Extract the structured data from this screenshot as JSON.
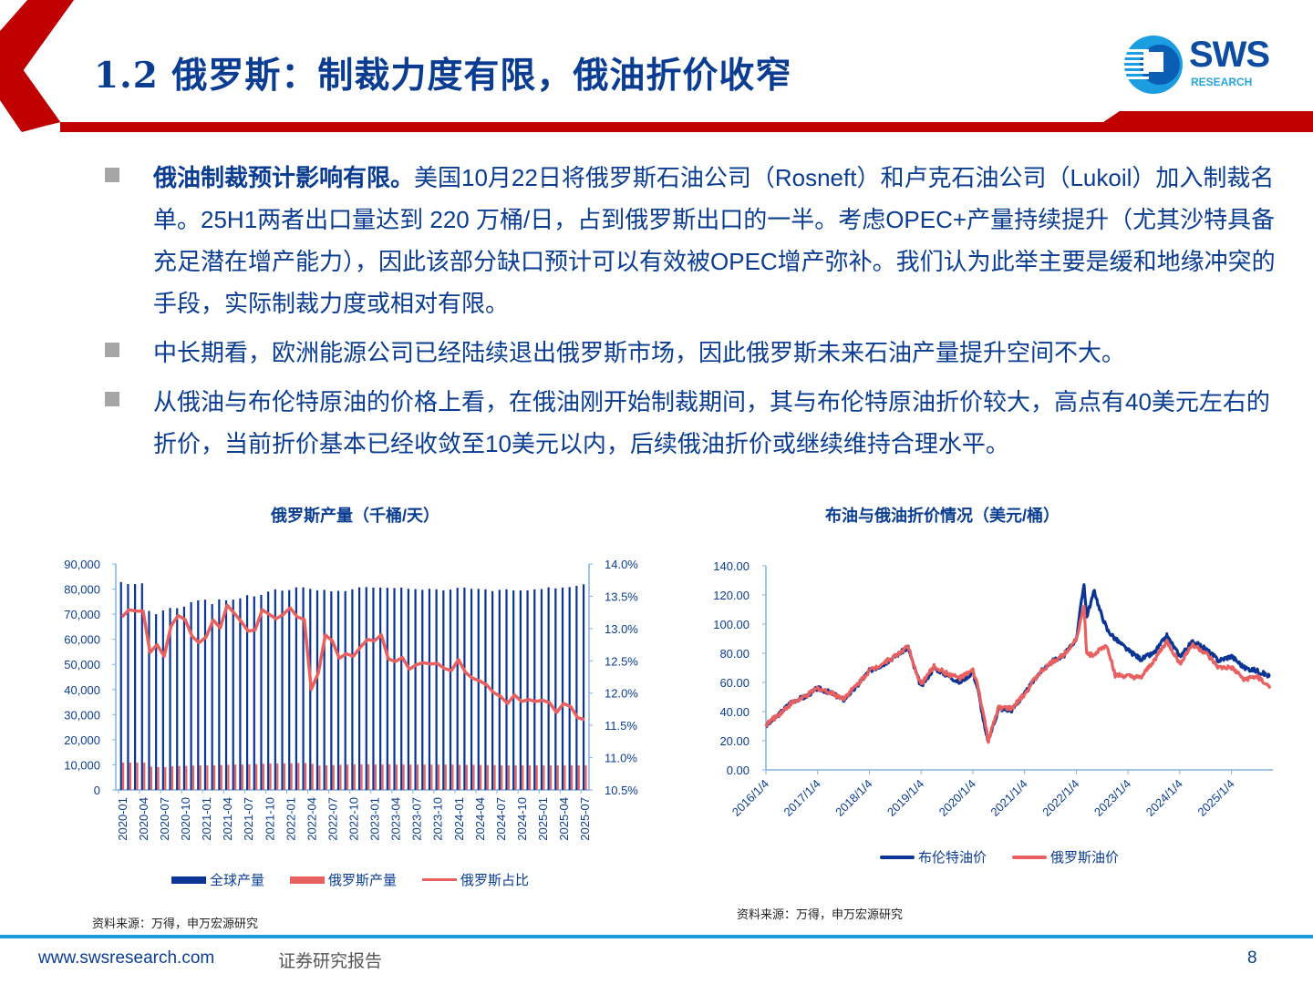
{
  "header": {
    "title": "1.2 俄罗斯：制裁力度有限，俄油折价收窄",
    "logo_text": "SWS",
    "logo_subtext": "RESEARCH",
    "accent_color": "#c00000",
    "title_color": "#0a3d91"
  },
  "bullets": [
    {
      "bold": "俄油制裁预计影响有限。",
      "text": "美国10月22日将俄罗斯石油公司（Rosneft）和卢克石油公司（Lukoil）加入制裁名单。25H1两者出口量达到 220 万桶/日，占到俄罗斯出口的一半。考虑OPEC+产量持续提升（尤其沙特具备充足潜在增产能力），因此该部分缺口预计可以有效被OPEC增产弥补。我们认为此举主要是缓和地缘冲突的手段，实际制裁力度或相对有限。"
    },
    {
      "bold": "",
      "text": "中长期看，欧洲能源公司已经陆续退出俄罗斯市场，因此俄罗斯未来石油产量提升空间不大。"
    },
    {
      "bold": "",
      "text": "从俄油与布伦特原油的价格上看，在俄油刚开始制裁期间，其与布伦特原油折价较大，高点有40美元左右的折价，当前折价基本已经收敛至10美元以内，后续俄油折价或继续维持合理水平。"
    }
  ],
  "left_chart": {
    "source": "资料来源：万得，申万宏源研究"
  },
  "right_chart": {
    "source": "资料来源：万得，申万宏源研究"
  },
  "footer": {
    "url": "www.swsresearch.com",
    "label": "证券研究报告",
    "page": "8"
  },
  "chart_data": [
    {
      "type": "bar",
      "title": "俄罗斯产量（千桶/天）",
      "xlabel": "",
      "ylabel": "",
      "ylim": [
        0,
        90000
      ],
      "y2lim": [
        10.5,
        14.0
      ],
      "yticks": [
        "0",
        "10,000",
        "20,000",
        "30,000",
        "40,000",
        "50,000",
        "60,000",
        "70,000",
        "80,000",
        "90,000"
      ],
      "y2ticks": [
        "10.5%",
        "11.0%",
        "11.5%",
        "12.0%",
        "12.5%",
        "13.0%",
        "13.5%",
        "14.0%"
      ],
      "xticks": [
        "2020-01",
        "2020-04",
        "2020-07",
        "2020-10",
        "2021-01",
        "2021-04",
        "2021-07",
        "2021-10",
        "2022-01",
        "2022-04",
        "2022-07",
        "2022-10",
        "2023-01",
        "2023-04",
        "2023-07",
        "2023-10",
        "2024-01",
        "2024-04",
        "2024-07",
        "2024-10",
        "2025-01",
        "2025-04",
        "2025-07"
      ],
      "legend": [
        "全球产量",
        "俄罗斯产量",
        "俄罗斯占比"
      ],
      "legend_position": "bottom",
      "grid": false,
      "series": [
        {
          "name": "全球产量",
          "type": "bar",
          "color": "#0a3594",
          "values": [
            82800,
            82000,
            82000,
            82300,
            71300,
            70000,
            71500,
            72500,
            72400,
            73000,
            74800,
            75500,
            75800,
            74000,
            75900,
            75500,
            75800,
            76300,
            77600,
            77100,
            77700,
            79000,
            79900,
            79400,
            79600,
            80700,
            80700,
            80100,
            79500,
            79700,
            79100,
            79300,
            79200,
            79900,
            80700,
            80800,
            80600,
            80600,
            80500,
            80400,
            80600,
            80100,
            80000,
            79700,
            80100,
            79900,
            79500,
            79800,
            80500,
            80600,
            80100,
            80100,
            79900,
            79200,
            79700,
            79900,
            79500,
            79500,
            79500,
            79900,
            80000,
            80700,
            80300,
            80600,
            80800,
            81300,
            81900
          ]
        },
        {
          "name": "俄罗斯产量",
          "type": "bar",
          "color": "#e8605f",
          "values": [
            10900,
            10900,
            10900,
            10900,
            9300,
            9100,
            9100,
            9400,
            9500,
            9600,
            9700,
            9800,
            9800,
            9800,
            9900,
            10000,
            10100,
            10100,
            10200,
            10300,
            10400,
            10500,
            10500,
            10600,
            10600,
            10700,
            10700,
            10400,
            9700,
            9800,
            9900,
            10000,
            10100,
            10200,
            10200,
            10200,
            10100,
            10100,
            10200,
            10100,
            10100,
            10100,
            10100,
            10100,
            10100,
            10100,
            10100,
            10100,
            10000,
            10000,
            10000,
            9900,
            9900,
            9900,
            9800,
            9800,
            9800,
            9800,
            9800,
            9800,
            9800,
            9800,
            9800,
            9800,
            9800,
            9800,
            9800
          ]
        },
        {
          "name": "俄罗斯占比",
          "type": "line",
          "color": "#e8605f",
          "axis": "right",
          "values": [
            13.18,
            13.29,
            13.27,
            13.27,
            12.63,
            12.75,
            12.57,
            13.04,
            13.2,
            13.14,
            12.88,
            12.78,
            12.87,
            13.13,
            13.01,
            13.36,
            13.24,
            13.11,
            12.96,
            12.98,
            13.29,
            13.22,
            13.15,
            13.22,
            13.32,
            13.18,
            13.14,
            12.06,
            12.31,
            12.9,
            12.81,
            12.54,
            12.61,
            12.57,
            12.71,
            12.83,
            12.81,
            12.9,
            12.53,
            12.49,
            12.55,
            12.37,
            12.44,
            12.47,
            12.45,
            12.46,
            12.38,
            12.35,
            12.52,
            12.32,
            12.23,
            12.19,
            12.13,
            12.01,
            11.95,
            11.84,
            11.97,
            11.87,
            11.9,
            11.87,
            11.89,
            11.85,
            11.7,
            11.84,
            11.79,
            11.62,
            11.59
          ]
        }
      ]
    },
    {
      "type": "line",
      "title": "布油与俄油折价情况（美元/桶）",
      "xlabel": "",
      "ylabel": "",
      "ylim": [
        0,
        140
      ],
      "yticks": [
        "0.00",
        "20.00",
        "40.00",
        "60.00",
        "80.00",
        "100.00",
        "120.00",
        "140.00"
      ],
      "xticks": [
        "2016/1/4",
        "2017/1/4",
        "2018/1/4",
        "2019/1/4",
        "2020/1/4",
        "2021/1/4",
        "2022/1/4",
        "2023/1/4",
        "2024/1/4",
        "2025/1/4"
      ],
      "legend": [
        "布伦特油价",
        "俄罗斯油价"
      ],
      "legend_position": "bottom",
      "grid": false,
      "x_years": [
        2016.0,
        2016.25,
        2016.5,
        2016.75,
        2017.0,
        2017.25,
        2017.5,
        2017.75,
        2018.0,
        2018.25,
        2018.5,
        2018.75,
        2018.85,
        2019.0,
        2019.25,
        2019.5,
        2019.75,
        2020.0,
        2020.1,
        2020.25,
        2020.3,
        2020.5,
        2020.75,
        2021.0,
        2021.25,
        2021.5,
        2021.75,
        2022.0,
        2022.15,
        2022.2,
        2022.35,
        2022.45,
        2022.6,
        2022.75,
        2023.0,
        2023.25,
        2023.5,
        2023.75,
        2024.0,
        2024.25,
        2024.5,
        2024.75,
        2025.0,
        2025.25,
        2025.5,
        2025.75
      ],
      "series": [
        {
          "name": "布伦特油价",
          "color": "#0a3594",
          "values": [
            30,
            38,
            47,
            50,
            56,
            53,
            48,
            57,
            68,
            72,
            78,
            84,
            72,
            57,
            70,
            65,
            60,
            67,
            55,
            25,
            20,
            42,
            41,
            52,
            65,
            74,
            78,
            90,
            128,
            105,
            123,
            110,
            96,
            90,
            82,
            76,
            80,
            92,
            78,
            88,
            83,
            75,
            78,
            70,
            68,
            64
          ]
        },
        {
          "name": "俄罗斯油价",
          "color": "#e8605f",
          "values": [
            31,
            38,
            46,
            50,
            56,
            53,
            49,
            58,
            68,
            73,
            78,
            85,
            72,
            59,
            71,
            66,
            63,
            68,
            57,
            30,
            20,
            43,
            42,
            52,
            65,
            73,
            79,
            90,
            112,
            80,
            78,
            83,
            85,
            65,
            64,
            63,
            75,
            88,
            73,
            86,
            80,
            70,
            70,
            62,
            64,
            56
          ]
        }
      ]
    }
  ]
}
